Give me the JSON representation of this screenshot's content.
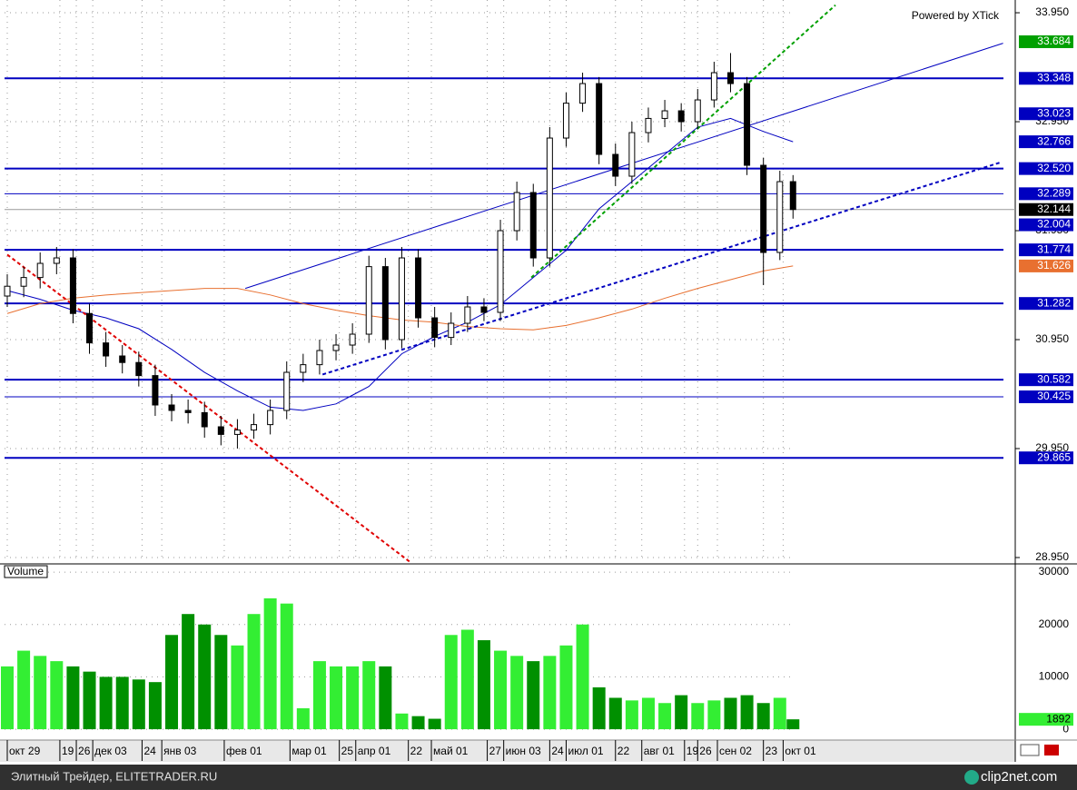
{
  "header": {
    "powered_by": "Powered by XTick"
  },
  "footer": {
    "site": "Элитный Трейдер, ELITETRADER.RU",
    "brand": "clip2net.com"
  },
  "chart_data": {
    "type": "candlestick",
    "x": [
      0,
      5,
      10,
      15,
      20,
      25,
      30,
      35,
      40,
      45,
      50,
      55,
      60,
      65,
      70,
      75,
      80,
      85,
      90,
      95,
      100,
      105,
      110,
      115,
      120,
      125,
      130,
      135,
      140,
      145,
      150,
      155,
      160,
      165,
      170,
      175,
      180,
      185,
      190,
      195,
      200,
      205,
      210,
      215,
      220,
      225,
      230,
      235,
      239
    ],
    "open": [
      31.35,
      31.44,
      31.52,
      31.65,
      31.7,
      31.19,
      30.92,
      30.8,
      30.74,
      30.62,
      30.35,
      30.3,
      30.28,
      30.15,
      30.08,
      30.12,
      30.17,
      30.3,
      30.65,
      30.72,
      30.85,
      30.9,
      31.0,
      31.62,
      30.95,
      31.7,
      31.15,
      30.97,
      31.1,
      31.25,
      31.2,
      31.95,
      32.3,
      31.7,
      32.8,
      33.12,
      33.3,
      32.65,
      32.45,
      32.85,
      32.98,
      33.05,
      32.95,
      33.15,
      33.4,
      33.3,
      32.55,
      31.75,
      32.4
    ],
    "high": [
      31.55,
      31.62,
      31.75,
      31.8,
      31.78,
      31.28,
      31.02,
      30.9,
      30.84,
      30.72,
      30.45,
      30.4,
      30.38,
      30.25,
      30.22,
      30.27,
      30.4,
      30.75,
      30.82,
      30.95,
      31.0,
      31.1,
      31.72,
      31.7,
      31.8,
      31.78,
      31.25,
      31.2,
      31.35,
      31.33,
      32.05,
      32.4,
      32.38,
      32.9,
      33.22,
      33.4,
      33.36,
      32.75,
      32.95,
      33.08,
      33.15,
      33.12,
      33.25,
      33.5,
      33.58,
      33.36,
      32.62,
      32.5,
      32.46
    ],
    "low": [
      31.25,
      31.34,
      31.42,
      31.55,
      31.1,
      30.82,
      30.7,
      30.64,
      30.52,
      30.25,
      30.2,
      30.18,
      30.05,
      29.98,
      29.95,
      30.04,
      30.08,
      30.22,
      30.56,
      30.63,
      30.76,
      30.82,
      30.92,
      30.86,
      30.87,
      31.06,
      30.88,
      30.9,
      31.02,
      31.12,
      31.12,
      31.86,
      31.62,
      31.62,
      32.72,
      33.04,
      32.56,
      32.36,
      32.38,
      32.76,
      32.9,
      32.86,
      32.88,
      33.08,
      33.22,
      32.46,
      31.45,
      31.68,
      32.06
    ],
    "close": [
      31.44,
      31.52,
      31.65,
      31.7,
      31.19,
      30.92,
      30.8,
      30.74,
      30.62,
      30.35,
      30.3,
      30.28,
      30.15,
      30.08,
      30.12,
      30.17,
      30.3,
      30.65,
      30.72,
      30.85,
      30.9,
      31.0,
      31.62,
      30.95,
      31.7,
      31.15,
      30.97,
      31.1,
      31.25,
      31.2,
      31.95,
      32.3,
      31.7,
      32.8,
      33.12,
      33.3,
      32.65,
      32.45,
      32.85,
      32.98,
      33.05,
      32.95,
      33.15,
      33.4,
      33.3,
      32.55,
      31.75,
      32.4,
      32.144
    ],
    "xlim": [
      -0.83,
      306.6
    ],
    "xticks": [
      {
        "value": 0,
        "label": "окт 29"
      },
      {
        "value": 16,
        "label": "19"
      },
      {
        "value": 21,
        "label": "26"
      },
      {
        "value": 26,
        "label": "дек 03"
      },
      {
        "value": 41,
        "label": "24"
      },
      {
        "value": 47,
        "label": "янв 03"
      },
      {
        "value": 66,
        "label": "фев 01"
      },
      {
        "value": 86,
        "label": "мар 01"
      },
      {
        "value": 101,
        "label": "25"
      },
      {
        "value": 106,
        "label": "апр 01"
      },
      {
        "value": 122,
        "label": "22"
      },
      {
        "value": 129,
        "label": "май 01"
      },
      {
        "value": 146,
        "label": "27"
      },
      {
        "value": 151,
        "label": "июн 03"
      },
      {
        "value": 165,
        "label": "24"
      },
      {
        "value": 170,
        "label": "июл 01"
      },
      {
        "value": 185,
        "label": "22"
      },
      {
        "value": 193,
        "label": "авг 01"
      },
      {
        "value": 206,
        "label": "19"
      },
      {
        "value": 210,
        "label": "26"
      },
      {
        "value": 216,
        "label": "сен 02"
      },
      {
        "value": 230,
        "label": "23"
      },
      {
        "value": 236,
        "label": "окт 01"
      }
    ],
    "ylim": [
      28.9,
      34.067
    ],
    "yticks": [
      {
        "value": 33.95,
        "label": "33.950"
      },
      {
        "value": 32.95,
        "label": "32.950"
      },
      {
        "value": 31.95,
        "label": "31.950"
      },
      {
        "value": 30.95,
        "label": "30.950"
      },
      {
        "value": 29.95,
        "label": "29.950"
      },
      {
        "value": 28.95,
        "label": "28.950"
      }
    ],
    "grid": true,
    "price_levels": [
      {
        "value": 33.684,
        "label": "33.684",
        "color": "#00a000",
        "line": "none"
      },
      {
        "value": 33.348,
        "label": "33.348",
        "color": "#0000c0",
        "line": "thick"
      },
      {
        "value": 33.023,
        "label": "33.023",
        "color": "#0000c0",
        "line": "none"
      },
      {
        "value": 32.52,
        "label": "32.520",
        "color": "#0000c0",
        "line": "thick"
      },
      {
        "value": 32.289,
        "label": "32.289",
        "color": "#0000c0",
        "line": "thin"
      },
      {
        "value": 32.004,
        "label": "32.004",
        "color": "#0000c0",
        "line": "none"
      },
      {
        "value": 31.774,
        "label": "31.774",
        "color": "#0000c0",
        "line": "thick"
      },
      {
        "value": 31.282,
        "label": "31.282",
        "color": "#0000c0",
        "line": "thick"
      },
      {
        "value": 30.582,
        "label": "30.582",
        "color": "#0000c0",
        "line": "thick"
      },
      {
        "value": 30.425,
        "label": "30.425",
        "color": "#0000c0",
        "line": "thin"
      },
      {
        "value": 29.865,
        "label": "29.865",
        "color": "#0000c0",
        "line": "thick"
      }
    ],
    "moving_averages": [
      {
        "color": "#0000c0",
        "x": [
          0,
          10,
          20,
          30,
          40,
          50,
          60,
          70,
          80,
          90,
          100,
          110,
          120,
          130,
          140,
          150,
          160,
          170,
          180,
          190,
          200,
          210,
          220,
          230,
          239
        ],
        "values": [
          31.4,
          31.32,
          31.22,
          31.15,
          31.05,
          30.86,
          30.65,
          30.48,
          30.33,
          30.3,
          30.36,
          30.52,
          30.82,
          30.98,
          31.11,
          31.27,
          31.52,
          31.77,
          32.15,
          32.4,
          32.65,
          32.9,
          32.98,
          32.86,
          32.766
        ]
      },
      {
        "color": "#e87030",
        "x": [
          0,
          10,
          20,
          30,
          40,
          50,
          60,
          70,
          80,
          90,
          100,
          110,
          120,
          130,
          140,
          150,
          160,
          170,
          180,
          190,
          200,
          210,
          220,
          230,
          239
        ],
        "values": [
          31.19,
          31.28,
          31.33,
          31.36,
          31.38,
          31.4,
          31.42,
          31.42,
          31.36,
          31.28,
          31.22,
          31.17,
          31.13,
          31.11,
          31.07,
          31.05,
          31.04,
          31.08,
          31.15,
          31.23,
          31.33,
          31.42,
          31.5,
          31.58,
          31.626
        ]
      }
    ],
    "trendlines": [
      {
        "color": "#e00000",
        "dashed": true,
        "x": [
          0,
          122.9
        ],
        "values": [
          31.73,
          28.9
        ]
      },
      {
        "color": "#0000c0",
        "dashed": false,
        "x": [
          72.4,
          302.9
        ],
        "values": [
          31.42,
          33.67
        ]
      },
      {
        "color": "#00a000",
        "dashed": true,
        "x": [
          159.4,
          251.9
        ],
        "values": [
          31.52,
          34.02
        ]
      },
      {
        "color": "#0000c0",
        "dashed": true,
        "x": [
          95.9,
          302.5
        ],
        "values": [
          30.63,
          32.58
        ]
      }
    ],
    "volume": {
      "label": "Volume",
      "up_color": "#33ee33",
      "down_color": "#009000",
      "values": [
        12000,
        15000,
        14000,
        13000,
        12000,
        11000,
        10000,
        10000,
        9500,
        9000,
        18000,
        22000,
        20000,
        18000,
        16000,
        22000,
        25000,
        24000,
        4000,
        13000,
        12000,
        12000,
        13000,
        12000,
        3000,
        2500,
        2000,
        18000,
        19000,
        17000,
        15000,
        14000,
        13000,
        14000,
        16000,
        20000,
        8000,
        6000,
        5500,
        6000,
        5000,
        6500,
        5000,
        5500,
        6000,
        6500,
        5000,
        6000,
        1892
      ],
      "ylim": [
        -1200,
        31400
      ],
      "yticks": [
        0,
        10000,
        20000,
        30000
      ]
    }
  }
}
